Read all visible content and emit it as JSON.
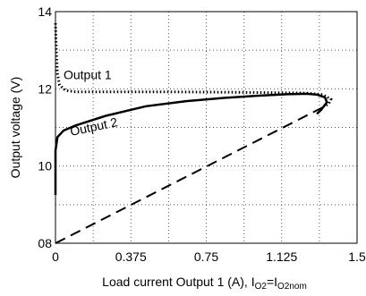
{
  "chart_data": {
    "type": "line",
    "xlabel_main": "Load current Output 1 (A), I",
    "xlabel_sub1": "O2",
    "xlabel_mid": "=I",
    "xlabel_sub2": "O2nom",
    "ylabel": "Output voltage (V)",
    "xlim": [
      0,
      1.5
    ],
    "ylim": [
      8,
      14
    ],
    "x_ticks": [
      0,
      0.375,
      0.75,
      1.125,
      1.5
    ],
    "x_tick_labels": [
      "0",
      "0.375",
      "0.75",
      "1.125",
      "1.5"
    ],
    "y_ticks": [
      8,
      10,
      12,
      14
    ],
    "y_tick_labels": [
      "08",
      "10",
      "12",
      "14"
    ],
    "grid": true,
    "series": [
      {
        "name": "Output 1",
        "style": "dotted",
        "points": [
          [
            0.0,
            13.7
          ],
          [
            0.005,
            12.9
          ],
          [
            0.01,
            12.4
          ],
          [
            0.02,
            12.1
          ],
          [
            0.05,
            11.96
          ],
          [
            0.1,
            11.92
          ],
          [
            0.3,
            11.92
          ],
          [
            0.6,
            11.92
          ],
          [
            0.9,
            11.91
          ],
          [
            1.1,
            11.9
          ],
          [
            1.25,
            11.89
          ],
          [
            1.33,
            11.85
          ],
          [
            1.37,
            11.73
          ],
          [
            1.36,
            11.62
          ],
          [
            1.34,
            11.55
          ]
        ]
      },
      {
        "name": "Output 2",
        "style": "solid",
        "points": [
          [
            0.0,
            9.25
          ],
          [
            0.0,
            10.4
          ],
          [
            0.01,
            10.75
          ],
          [
            0.04,
            10.92
          ],
          [
            0.1,
            11.05
          ],
          [
            0.25,
            11.3
          ],
          [
            0.45,
            11.55
          ],
          [
            0.65,
            11.68
          ],
          [
            0.85,
            11.77
          ],
          [
            1.0,
            11.82
          ],
          [
            1.15,
            11.86
          ],
          [
            1.25,
            11.87
          ],
          [
            1.3,
            11.85
          ],
          [
            1.34,
            11.78
          ],
          [
            1.35,
            11.65
          ],
          [
            1.32,
            11.45
          ],
          [
            1.3,
            11.35
          ]
        ]
      },
      {
        "style": "dashed",
        "points": [
          [
            0.0,
            8.0
          ],
          [
            1.34,
            11.55
          ]
        ]
      }
    ]
  }
}
